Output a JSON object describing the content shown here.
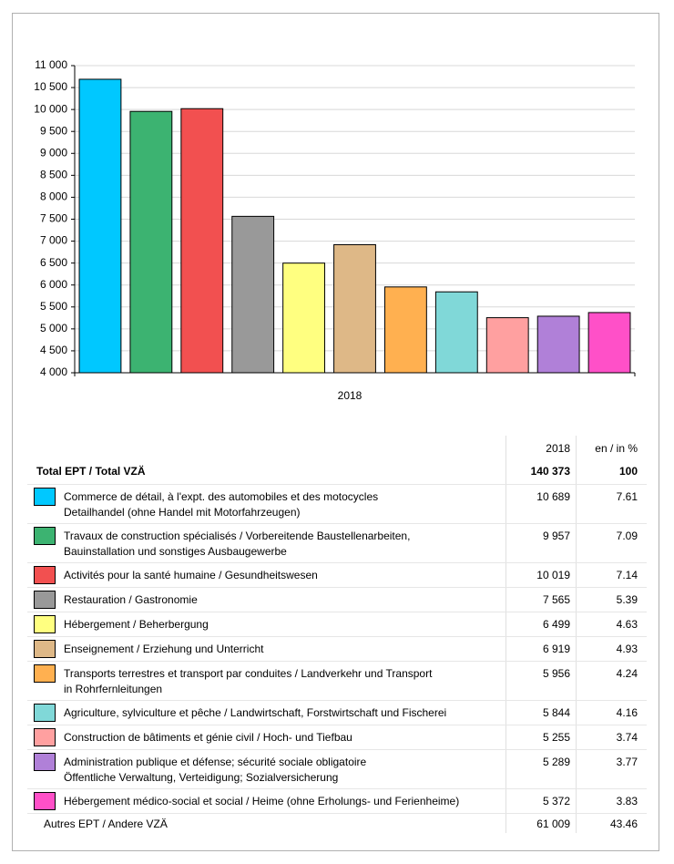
{
  "chart_data": {
    "type": "bar",
    "x_label": "2018",
    "categories": [
      "Commerce de détail, à l'expt. des automobiles et des motocycles\nDetailhandel (ohne Handel mit Motorfahrzeugen)",
      "Travaux de construction spécialisés / Vorbereitende Baustellenarbeiten,\nBauinstallation und sonstiges Ausbaugewerbe",
      "Activités pour la santé humaine / Gesundheitswesen",
      "Restauration / Gastronomie",
      "Hébergement / Beherbergung",
      "Enseignement / Erziehung und Unterricht",
      "Transports terrestres et transport par conduites / Landverkehr und Transport\nin Rohrfernleitungen",
      "Agriculture, sylviculture et pêche / Landwirtschaft, Forstwirtschaft und Fischerei",
      "Construction de bâtiments et génie civil / Hoch- und Tiefbau",
      "Administration publique et défense; sécurité sociale obligatoire\nÖffentliche Verwaltung, Verteidigung; Sozialversicherung",
      "Hébergement médico-social et social / Heime (ohne Erholungs- und Ferienheime)"
    ],
    "values": [
      10689,
      9957,
      10019,
      7565,
      6499,
      6919,
      5956,
      5844,
      5255,
      5289,
      5372
    ],
    "value_labels": [
      "10 689",
      "9 957",
      "10 019",
      "7 565",
      "6 499",
      "6 919",
      "5 956",
      "5 844",
      "5 255",
      "5 289",
      "5 372"
    ],
    "shares": [
      7.61,
      7.09,
      7.14,
      5.39,
      4.63,
      4.93,
      4.24,
      4.16,
      3.74,
      3.77,
      3.83
    ],
    "colors": [
      "#00c8ff",
      "#3cb371",
      "#f25050",
      "#999999",
      "#ffff80",
      "#deb887",
      "#ffb050",
      "#80d8d8",
      "#ffa0a0",
      "#b080d8",
      "#ff50c8"
    ],
    "ylim": [
      4000,
      11000
    ],
    "yticks": [
      {
        "value": 4000,
        "label": "4 000"
      },
      {
        "value": 4500,
        "label": "4 500"
      },
      {
        "value": 5000,
        "label": "5 000"
      },
      {
        "value": 5500,
        "label": "5 500"
      },
      {
        "value": 6000,
        "label": "6 000"
      },
      {
        "value": 6500,
        "label": "6 500"
      },
      {
        "value": 7000,
        "label": "7 000"
      },
      {
        "value": 7500,
        "label": "7 500"
      },
      {
        "value": 8000,
        "label": "8 000"
      },
      {
        "value": 8500,
        "label": "8 500"
      },
      {
        "value": 9000,
        "label": "9 000"
      },
      {
        "value": 9500,
        "label": "9 500"
      },
      {
        "value": 10000,
        "label": "10 000"
      },
      {
        "value": 10500,
        "label": "10 500"
      },
      {
        "value": 11000,
        "label": "11 000"
      }
    ],
    "grid": true
  },
  "table": {
    "header": [
      "2018",
      "en / in %"
    ],
    "total": {
      "label": "Total EPT / Total VZÄ",
      "value": 140373,
      "value_label": "140 373",
      "share": 100
    },
    "other": {
      "label": "Autres EPT / Andere VZÄ",
      "value": 61009,
      "value_label": "61 009",
      "share": 43.46
    }
  }
}
